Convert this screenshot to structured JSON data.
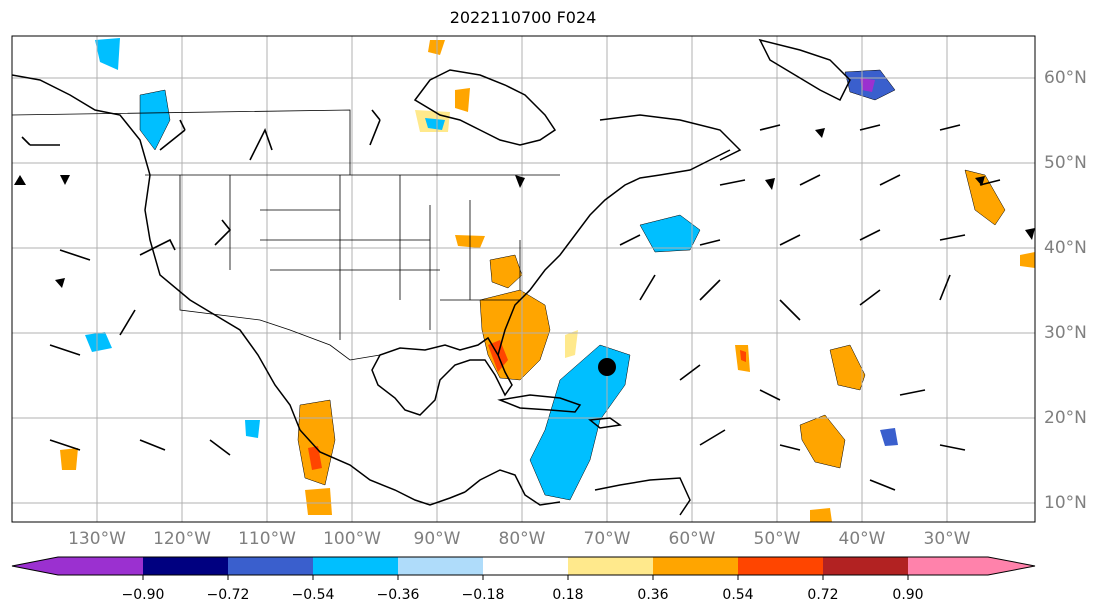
{
  "title": "2022110700 F024",
  "lon_labels": [
    "130°W",
    "120°W",
    "110°W",
    "100°W",
    "90°W",
    "80°W",
    "70°W",
    "60°W",
    "50°W",
    "40°W",
    "30°W"
  ],
  "lat_labels": [
    "60°N",
    "50°N",
    "40°N",
    "30°N",
    "20°N",
    "10°N"
  ],
  "colorbar": {
    "ticks": [
      "−0.90",
      "−0.72",
      "−0.54",
      "−0.36",
      "−0.18",
      "0.18",
      "0.36",
      "0.54",
      "0.72",
      "0.90"
    ],
    "under_color": "#9b30d0",
    "colors": [
      "#000080",
      "#3a5fcd",
      "#00bfff",
      "#afdcfa",
      "#ffffff",
      "#ffe98c",
      "#ffa500",
      "#ff4500",
      "#b22222"
    ],
    "over_color": "#ff82ab"
  },
  "marker": {
    "name": "storm-center",
    "lon": -70,
    "lat": 26.5,
    "color": "#000000"
  },
  "palette": {
    "land_line": "#000000",
    "grid": "#b0b0b0",
    "axis_label": "#7f7f7f"
  }
}
